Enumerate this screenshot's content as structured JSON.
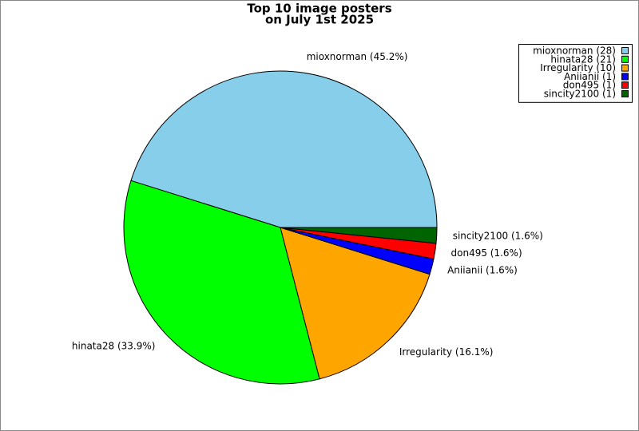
{
  "chart_data": {
    "type": "pie",
    "title": [
      "Top 10 image posters",
      "on July 1st 2025"
    ],
    "categories": [
      "mioxnorman",
      "hinata28",
      "Irregularity",
      "Aniianii",
      "don495",
      "sincity2100"
    ],
    "values": [
      28,
      21,
      10,
      1,
      1,
      1
    ],
    "slice_labels": [
      "mioxnorman (45.2%)",
      "hinata28 (33.9%)",
      "Irregularity (16.1%)",
      "Aniianii (1.6%)",
      "don495 (1.6%)",
      "sincity2100 (1.6%)"
    ],
    "legend_labels": [
      "mioxnorman (28)",
      "hinata28 (21)",
      "Irregularity (10)",
      "Aniianii (1)",
      "don495 (1)",
      "sincity2100 (1)"
    ],
    "colors": [
      "#87ceeb",
      "#00ff00",
      "#ffa500",
      "#0000ff",
      "#ff0000",
      "#006400"
    ],
    "legend": "top-right"
  }
}
